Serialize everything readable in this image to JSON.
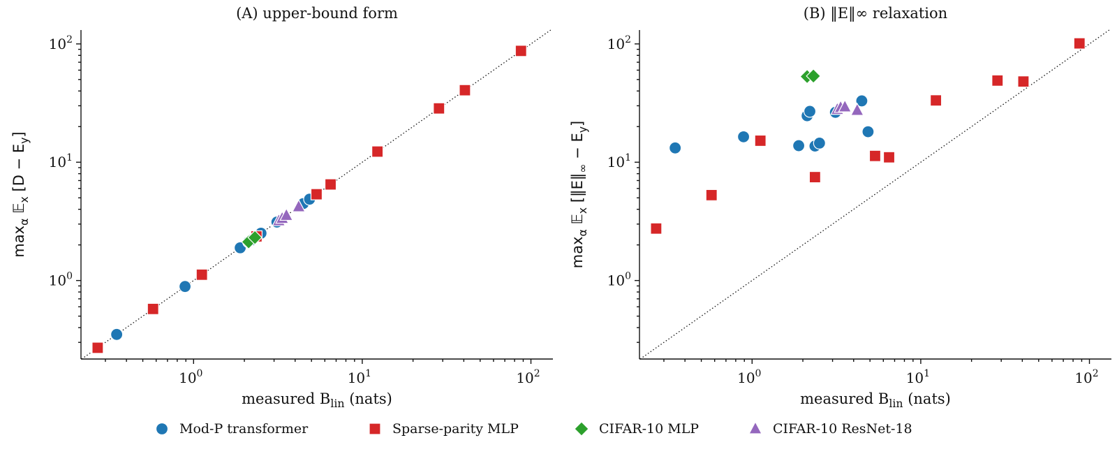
{
  "colors": {
    "Mod-P transformer": "#1f77b4",
    "Sparse-parity MLP": "#d62728",
    "CIFAR-10 MLP": "#2ca02c",
    "CIFAR-10 ResNet-18": "#9467bd"
  },
  "legend": {
    "placement": "bottom-center",
    "items": [
      {
        "label": "Mod-P transformer",
        "marker": "circle"
      },
      {
        "label": "Sparse-parity MLP",
        "marker": "square"
      },
      {
        "label": "CIFAR-10 MLP",
        "marker": "diamond"
      },
      {
        "label": "CIFAR-10 ResNet-18",
        "marker": "triangle"
      }
    ]
  },
  "chart_data": [
    {
      "type": "scatter",
      "title": "(A) upper-bound form",
      "xlabel": "measured B_lin (nats)",
      "ylabel": "max_α 𝔼_x [D − E_y]",
      "xscale": "log",
      "yscale": "log",
      "xlim": [
        0.215,
        135
      ],
      "ylim": [
        0.217,
        131
      ],
      "xticks": [
        "10^0",
        "10^1",
        "10^2"
      ],
      "yticks": [
        "10^0",
        "10^1",
        "10^2"
      ],
      "reference_line": "y = x (dotted)",
      "grid": false,
      "series": [
        {
          "name": "Mod-P transformer",
          "marker": "circle",
          "points": [
            [
              0.35,
              0.35
            ],
            [
              0.89,
              0.89
            ],
            [
              1.89,
              1.89
            ],
            [
              2.12,
              2.12
            ],
            [
              2.2,
              2.2
            ],
            [
              2.36,
              2.36
            ],
            [
              2.51,
              2.51
            ],
            [
              3.12,
              3.12
            ],
            [
              4.47,
              4.47
            ],
            [
              4.87,
              4.87
            ]
          ]
        },
        {
          "name": "Sparse-parity MLP",
          "marker": "square",
          "points": [
            [
              0.27,
              0.27
            ],
            [
              0.575,
              0.575
            ],
            [
              1.12,
              1.12
            ],
            [
              2.36,
              2.36
            ],
            [
              5.36,
              5.36
            ],
            [
              6.49,
              6.49
            ],
            [
              12.3,
              12.3
            ],
            [
              28.5,
              28.5
            ],
            [
              40.6,
              40.6
            ],
            [
              87.3,
              87.3
            ]
          ]
        },
        {
          "name": "CIFAR-10 MLP",
          "marker": "diamond",
          "points": [
            [
              2.12,
              2.12
            ],
            [
              2.31,
              2.31
            ]
          ]
        },
        {
          "name": "CIFAR-10 ResNet-18",
          "marker": "triangle",
          "points": [
            [
              3.2,
              3.2
            ],
            [
              3.35,
              3.35
            ],
            [
              3.55,
              3.55
            ],
            [
              4.2,
              4.2
            ]
          ]
        }
      ]
    },
    {
      "type": "scatter",
      "title": "(B) ‖E‖∞ relaxation",
      "xlabel": "measured B_lin (nats)",
      "ylabel": "max_α 𝔼_x [‖E‖_∞ − E_y]",
      "xscale": "log",
      "yscale": "log",
      "xlim": [
        0.215,
        135
      ],
      "ylim": [
        0.217,
        131
      ],
      "xticks": [
        "10^0",
        "10^1",
        "10^2"
      ],
      "yticks": [
        "10^0",
        "10^1",
        "10^2"
      ],
      "reference_line": "y = x (dotted)",
      "grid": false,
      "series": [
        {
          "name": "Mod-P transformer",
          "marker": "circle",
          "points": [
            [
              0.35,
              13.2
            ],
            [
              0.89,
              16.4
            ],
            [
              1.89,
              13.8
            ],
            [
              2.12,
              24.7
            ],
            [
              2.2,
              26.9
            ],
            [
              2.36,
              13.7
            ],
            [
              2.51,
              14.5
            ],
            [
              3.12,
              26.4
            ],
            [
              4.47,
              33.0
            ],
            [
              4.87,
              18.1
            ]
          ]
        },
        {
          "name": "Sparse-parity MLP",
          "marker": "square",
          "points": [
            [
              0.27,
              2.75
            ],
            [
              0.575,
              5.27
            ],
            [
              1.12,
              15.2
            ],
            [
              2.36,
              7.48
            ],
            [
              5.36,
              11.3
            ],
            [
              6.49,
              11.0
            ],
            [
              12.3,
              33.3
            ],
            [
              28.5,
              49.0
            ],
            [
              40.6,
              48.1
            ],
            [
              87.3,
              101
            ]
          ]
        },
        {
          "name": "CIFAR-10 MLP",
          "marker": "diamond",
          "points": [
            [
              2.12,
              53.0
            ],
            [
              2.31,
              53.5
            ]
          ]
        },
        {
          "name": "CIFAR-10 ResNet-18",
          "marker": "triangle",
          "points": [
            [
              3.2,
              27.9
            ],
            [
              3.35,
              29.0
            ],
            [
              3.55,
              29.3
            ],
            [
              4.2,
              27.4
            ]
          ]
        }
      ]
    }
  ]
}
